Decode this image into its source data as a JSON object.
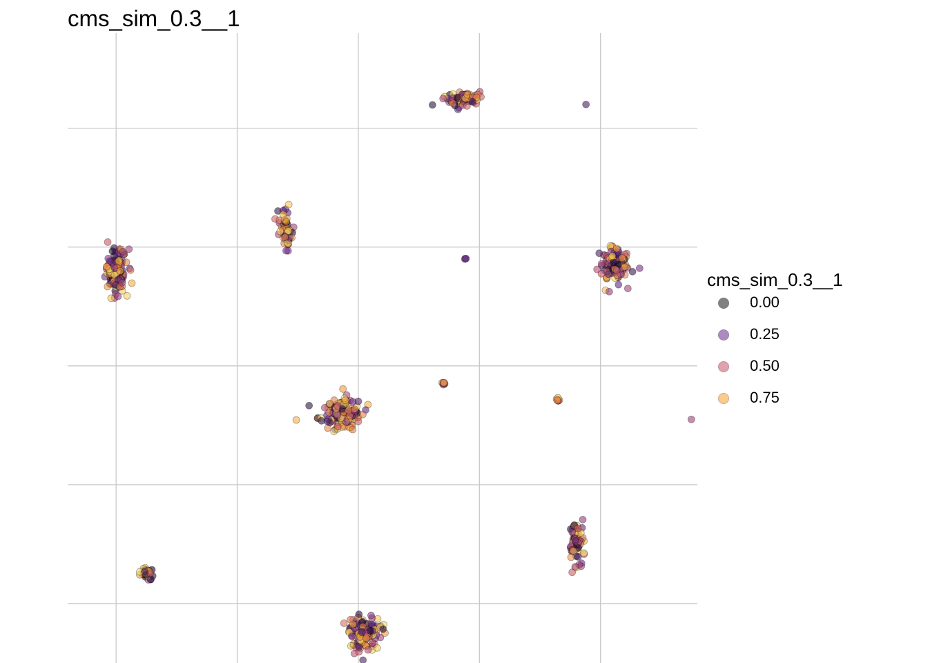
{
  "chart_data": {
    "type": "scatter",
    "title": "cms_sim_0.3__1",
    "xlabel": "",
    "ylabel": "",
    "grid": true,
    "axis_ticks_visible": false,
    "legend": {
      "title": "cms_sim_0.3__1",
      "placement": "right",
      "entries": [
        {
          "label": "0.00",
          "value": 0.0,
          "color": "#1b1b1b"
        },
        {
          "label": "0.25",
          "value": 0.25,
          "color": "#6b2d8f"
        },
        {
          "label": "0.50",
          "value": 0.5,
          "color": "#c9566c"
        },
        {
          "label": "0.75",
          "value": 0.75,
          "color": "#f7a233"
        }
      ]
    },
    "clusters": [
      {
        "x": -1.0,
        "y": -0.2,
        "count": 130,
        "spread": [
          0.09,
          0.19
        ],
        "color_range": [
          0,
          1
        ]
      },
      {
        "x": 0.4,
        "y": 0.15,
        "count": 55,
        "spread": [
          0.05,
          0.15
        ],
        "color_range": [
          0,
          1
        ]
      },
      {
        "x": 1.85,
        "y": 1.25,
        "count": 70,
        "spread": [
          0.14,
          0.07
        ],
        "color_range": [
          0,
          1
        ]
      },
      {
        "x": 2.88,
        "y": 1.2,
        "count": 1,
        "spread": [
          0,
          0
        ],
        "color_range": [
          0.1,
          0.2
        ]
      },
      {
        "x": 1.88,
        "y": -0.1,
        "count": 3,
        "spread": [
          0.01,
          0.01
        ],
        "color_range": [
          0.1,
          0.3
        ]
      },
      {
        "x": 3.11,
        "y": -0.15,
        "count": 110,
        "spread": [
          0.13,
          0.15
        ],
        "color_range": [
          0,
          1
        ]
      },
      {
        "x": 0.85,
        "y": -1.4,
        "count": 140,
        "spread": [
          0.18,
          0.13
        ],
        "color_range": [
          0,
          1
        ]
      },
      {
        "x": 1.7,
        "y": -1.15,
        "count": 8,
        "spread": [
          0.02,
          0.02
        ],
        "color_range": [
          0.3,
          0.9
        ]
      },
      {
        "x": 2.65,
        "y": -1.28,
        "count": 6,
        "spread": [
          0.02,
          0.02
        ],
        "color_range": [
          0.2,
          0.9
        ]
      },
      {
        "x": 3.75,
        "y": -1.45,
        "count": 1,
        "spread": [
          0,
          0
        ],
        "color_range": [
          0.35,
          0.4
        ]
      },
      {
        "x": 2.8,
        "y": -2.45,
        "count": 70,
        "spread": [
          0.06,
          0.17
        ],
        "color_range": [
          0,
          1
        ]
      },
      {
        "x": -0.75,
        "y": -2.75,
        "count": 35,
        "spread": [
          0.06,
          0.05
        ],
        "color_range": [
          0,
          1
        ]
      },
      {
        "x": 1.05,
        "y": -3.25,
        "count": 120,
        "spread": [
          0.15,
          0.14
        ],
        "color_range": [
          0,
          1
        ]
      }
    ],
    "xlim": [
      -1.4,
      3.8
    ],
    "ylim": [
      -3.5,
      1.8
    ],
    "x_gridlines": [
      -1,
      0,
      1,
      2,
      3
    ],
    "y_gridlines": [
      -3,
      -2,
      -1,
      0,
      1
    ]
  }
}
